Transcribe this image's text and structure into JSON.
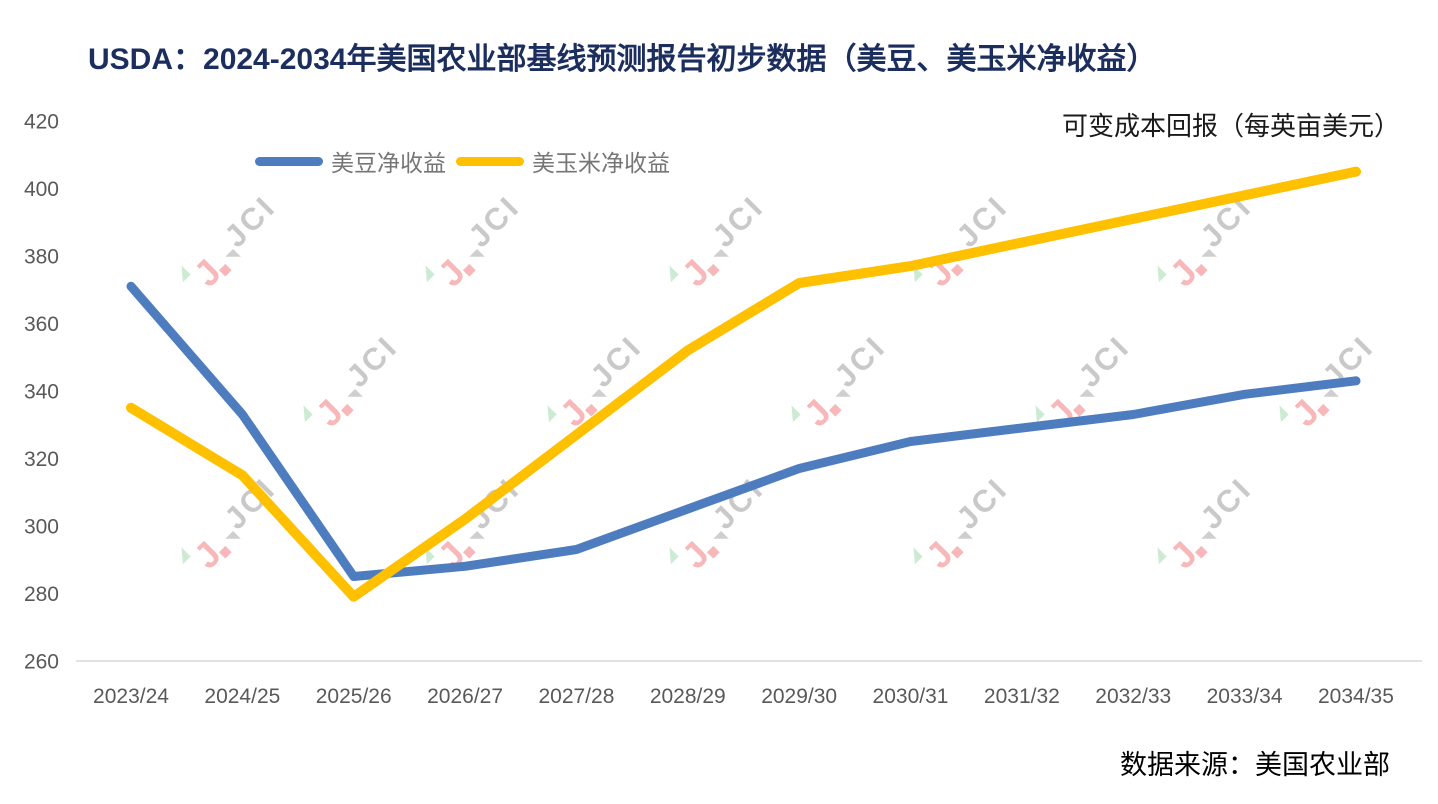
{
  "title": "USDA：2024-2034年美国农业部基线预测报告初步数据（美豆、美玉米净收益）",
  "subtitle": "可变成本回报（每英亩美元）",
  "source": "数据来源：美国农业部",
  "watermark_text": "JCI",
  "colors": {
    "title": "#1b2e5e",
    "subtitle": "#1a1a1a",
    "axis_label": "#595959",
    "legend_label": "#767676",
    "axis_line": "#d9d9d9",
    "soybean_line": "#4e7dbf",
    "corn_line": "#ffc000",
    "watermark_pink": "#f8b8ba",
    "watermark_green": "#cdebd4",
    "watermark_gray": "#c9c9c9"
  },
  "chart_data": {
    "type": "line",
    "title": "USDA：2024-2034年美国农业部基线预测报告初步数据（美豆、美玉米净收益）",
    "subtitle": "可变成本回报（每英亩美元）",
    "xlabel": "",
    "ylabel": "",
    "ylim": [
      260,
      420
    ],
    "yticks": [
      260,
      280,
      300,
      320,
      340,
      360,
      380,
      400,
      420
    ],
    "grid": false,
    "legend_position": "top-left-inside",
    "categories": [
      "2023/24",
      "2024/25",
      "2025/26",
      "2026/27",
      "2027/28",
      "2028/29",
      "2029/30",
      "2030/31",
      "2031/32",
      "2032/33",
      "2033/34",
      "2034/35"
    ],
    "series": [
      {
        "name": "美豆净收益",
        "color": "#4e7dbf",
        "stroke_width": 9,
        "values": [
          371,
          333,
          285,
          288,
          293,
          305,
          317,
          325,
          329,
          333,
          339,
          343
        ]
      },
      {
        "name": "美玉米净收益",
        "color": "#ffc000",
        "stroke_width": 10,
        "values": [
          335,
          315,
          279,
          302,
          327,
          352,
          372,
          377,
          384,
          391,
          398,
          405
        ]
      }
    ],
    "source_note": "数据来源：美国农业部"
  }
}
